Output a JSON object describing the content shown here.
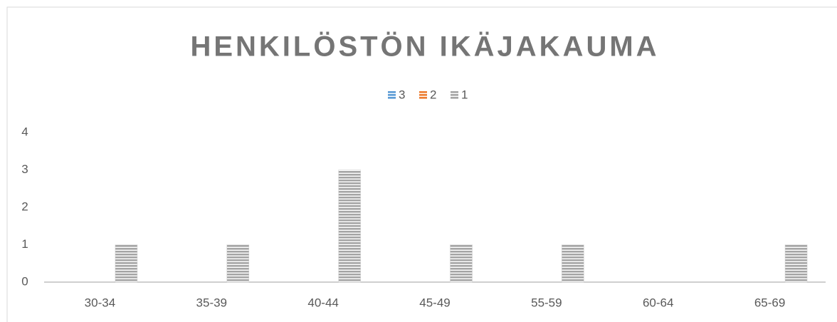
{
  "chart_data": {
    "type": "bar",
    "title": "HENKILÖSTÖN IKÄJAKAUMA",
    "categories": [
      "30-34",
      "35-39",
      "40-44",
      "45-49",
      "55-59",
      "60-64",
      "65-69"
    ],
    "series": [
      {
        "name": "3",
        "color": "#5b9bd5",
        "values": [
          null,
          null,
          null,
          null,
          null,
          null,
          null
        ]
      },
      {
        "name": "2",
        "color": "#ed7d31",
        "values": [
          null,
          null,
          null,
          null,
          null,
          null,
          null
        ]
      },
      {
        "name": "1",
        "color": "#a5a5a5",
        "values": [
          1,
          1,
          3,
          1,
          1,
          0,
          1
        ]
      }
    ],
    "ylim": [
      0,
      4
    ],
    "yticks": [
      0,
      1,
      2,
      3,
      4
    ],
    "grid": false,
    "legend": "top"
  }
}
